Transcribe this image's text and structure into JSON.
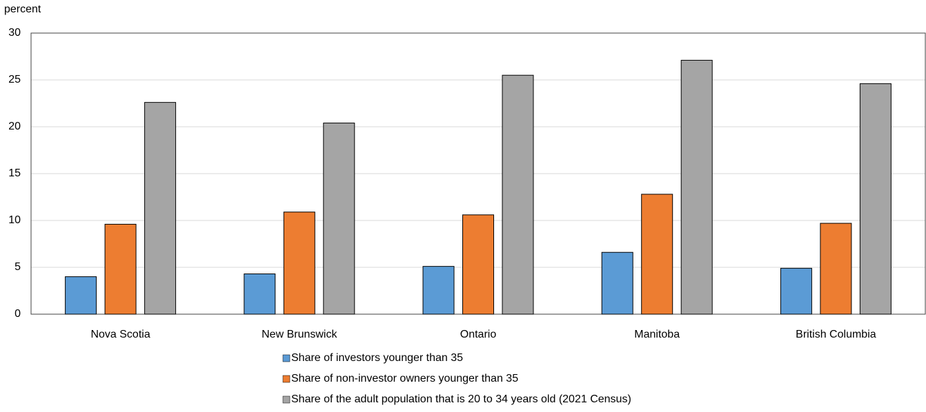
{
  "chart_data": {
    "type": "bar",
    "y_label": "percent",
    "categories": [
      "Nova Scotia",
      "New Brunswick",
      "Ontario",
      "Manitoba",
      "British Columbia"
    ],
    "series": [
      {
        "name": "Share of investors younger than 35",
        "color": "#5b9bd5",
        "values": [
          4.0,
          4.3,
          5.1,
          6.6,
          4.9
        ]
      },
      {
        "name": "Share of non-investor owners younger than 35",
        "color": "#ed7d31",
        "values": [
          9.6,
          10.9,
          10.6,
          12.8,
          9.7
        ]
      },
      {
        "name": "Share of the adult population that is 20 to 34 years old (2021 Census)",
        "color": "#a5a5a5",
        "values": [
          22.6,
          20.4,
          25.5,
          27.1,
          24.6
        ]
      }
    ],
    "ylim": [
      0,
      30
    ],
    "yticks": [
      0,
      5,
      10,
      15,
      20,
      25,
      30
    ],
    "grid": true,
    "legend": "bottom"
  }
}
